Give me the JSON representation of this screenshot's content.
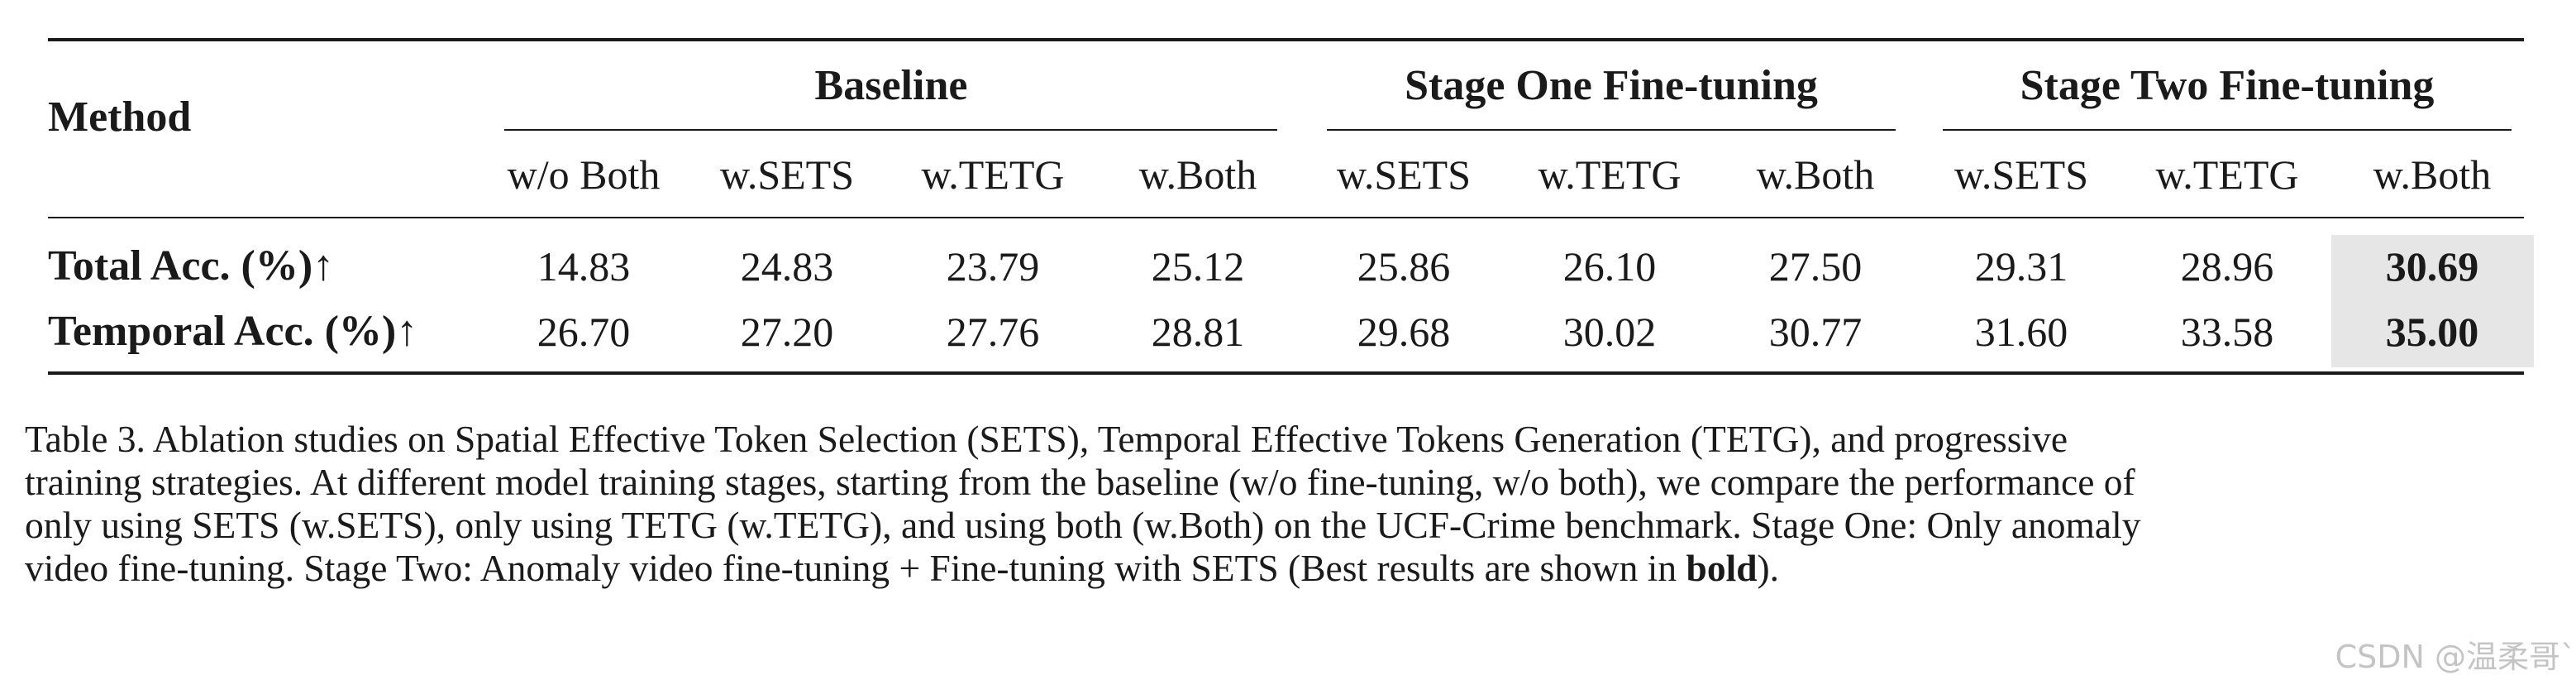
{
  "table": {
    "method_header": "Method",
    "groups": [
      {
        "label": "Baseline",
        "columns": [
          "w/o Both",
          "w.SETS",
          "w.TETG",
          "w.Both"
        ]
      },
      {
        "label": "Stage One Fine-tuning",
        "columns": [
          "w.SETS",
          "w.TETG",
          "w.Both"
        ]
      },
      {
        "label": "Stage Two Fine-tuning",
        "columns": [
          "w.SETS",
          "w.TETG",
          "w.Both"
        ]
      }
    ],
    "rows": [
      {
        "label": "Total Acc. (%)↑",
        "values": [
          "14.83",
          "24.83",
          "23.79",
          "25.12",
          "25.86",
          "26.10",
          "27.50",
          "29.31",
          "28.96",
          "30.69"
        ]
      },
      {
        "label": "Temporal Acc. (%)↑",
        "values": [
          "26.70",
          "27.20",
          "27.76",
          "28.81",
          "29.68",
          "30.02",
          "30.77",
          "31.60",
          "33.58",
          "35.00"
        ]
      }
    ],
    "best_column_index": 9,
    "best_highlight_color": "#e6e6e6"
  },
  "caption": {
    "line1": "Table 3. Ablation studies on Spatial Effective Token Selection (SETS), Temporal Effective Tokens Generation (TETG), and progressive",
    "line2": "training strategies. At different model training stages, starting from the baseline (w/o fine-tuning, w/o both), we compare the performance of",
    "line3": "only using SETS (w.SETS), only using TETG (w.TETG), and using both (w.Both) on the UCF-Crime benchmark. Stage One: Only anomaly",
    "line4_pre": "video fine-tuning. Stage Two: Anomaly video fine-tuning + Fine-tuning with SETS (Best results are shown in ",
    "line4_bold": "bold",
    "line4_post": ")."
  },
  "watermark": "CSDN @温柔哥`"
}
